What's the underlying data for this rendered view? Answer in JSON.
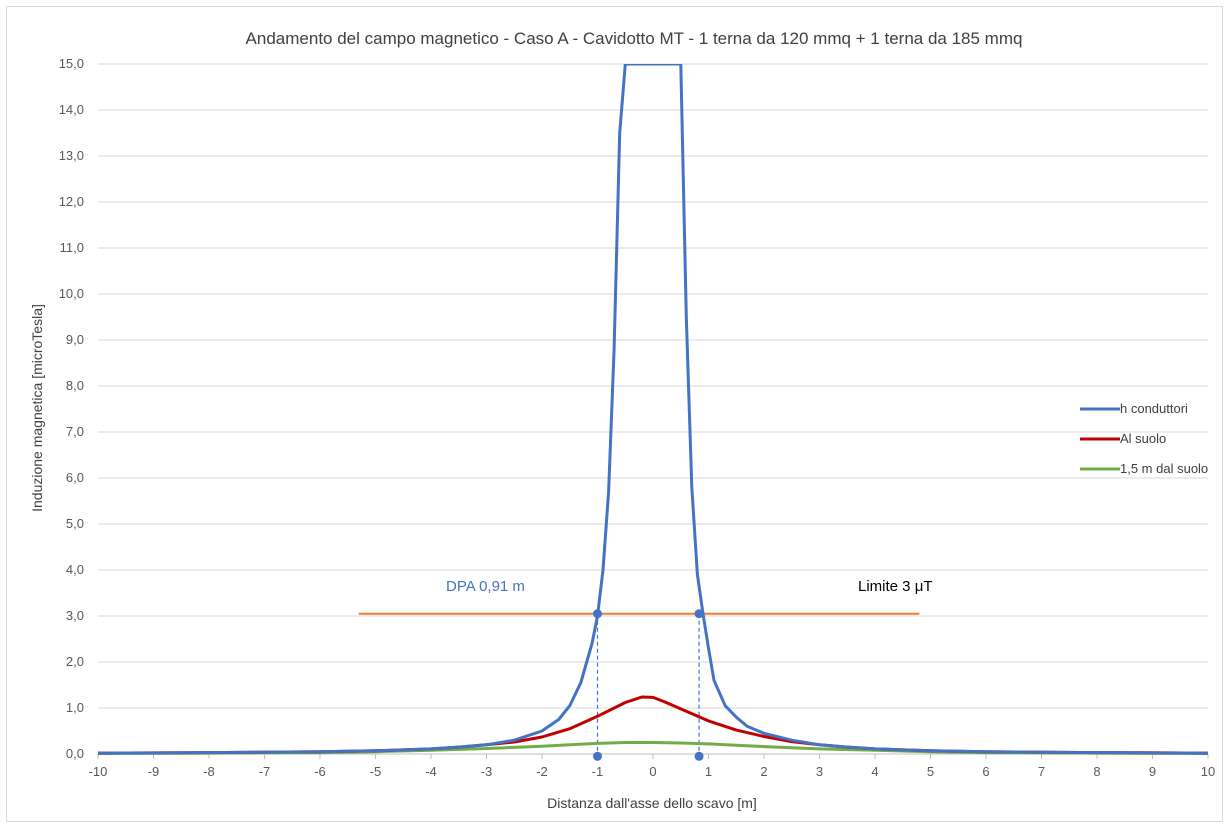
{
  "chart_data": {
    "type": "line",
    "title": "Andamento del  campo magnetico - Caso A - Cavidotto MT - 1 terna da 120 mmq + 1 terna da 185 mmq",
    "xlabel": "Distanza dall'asse dello scavo [m]",
    "ylabel": "Induzione magnetica [microTesla]",
    "xlim": [
      -10,
      10
    ],
    "ylim": [
      0,
      15
    ],
    "x_ticks": [
      "-10",
      "-9",
      "-8",
      "-7",
      "-6",
      "-5",
      "-4",
      "-3",
      "-2",
      "-1",
      "0",
      "1",
      "2",
      "3",
      "4",
      "5",
      "6",
      "7",
      "8",
      "9",
      "10"
    ],
    "y_ticks": [
      "0,0",
      "1,0",
      "2,0",
      "3,0",
      "4,0",
      "5,0",
      "6,0",
      "7,0",
      "8,0",
      "9,0",
      "10,0",
      "11,0",
      "12,0",
      "13,0",
      "14,0",
      "15,0"
    ],
    "grid": "horizontal",
    "legend_position": "right",
    "series": [
      {
        "name": "h conduttori",
        "color": "#4472c4",
        "x": [
          -10,
          -8,
          -6,
          -5,
          -4,
          -3.5,
          -3,
          -2.5,
          -2,
          -1.7,
          -1.5,
          -1.3,
          -1.1,
          -1.0,
          -0.9,
          -0.8,
          -0.7,
          -0.6,
          -0.5,
          0.5,
          0.6,
          0.7,
          0.8,
          0.9,
          1.0,
          1.1,
          1.3,
          1.5,
          1.7,
          2,
          2.5,
          3,
          3.5,
          4,
          5,
          6,
          8,
          10
        ],
        "y": [
          0.02,
          0.03,
          0.05,
          0.07,
          0.11,
          0.15,
          0.2,
          0.3,
          0.5,
          0.75,
          1.05,
          1.55,
          2.4,
          3.0,
          4.0,
          5.7,
          8.8,
          13.5,
          15,
          15,
          9.5,
          5.8,
          3.9,
          3.05,
          2.3,
          1.6,
          1.05,
          0.8,
          0.6,
          0.45,
          0.3,
          0.2,
          0.15,
          0.11,
          0.07,
          0.05,
          0.03,
          0.02
        ]
      },
      {
        "name": "Al suolo",
        "color": "#c00000",
        "x": [
          -10,
          -8,
          -6,
          -5,
          -4,
          -3.5,
          -3,
          -2.5,
          -2,
          -1.5,
          -1,
          -0.5,
          -0.2,
          0,
          0.2,
          0.5,
          1,
          1.5,
          2,
          2.5,
          3,
          3.5,
          4,
          5,
          6,
          8,
          10
        ],
        "y": [
          0.02,
          0.03,
          0.05,
          0.07,
          0.11,
          0.15,
          0.2,
          0.26,
          0.37,
          0.55,
          0.82,
          1.12,
          1.24,
          1.23,
          1.14,
          0.98,
          0.72,
          0.52,
          0.38,
          0.27,
          0.2,
          0.15,
          0.11,
          0.07,
          0.05,
          0.03,
          0.02
        ]
      },
      {
        "name": "1,5 m dal suolo",
        "color": "#70ad47",
        "x": [
          -10,
          -8,
          -6,
          -5,
          -4,
          -3,
          -2,
          -1.5,
          -1,
          -0.5,
          0,
          0.5,
          1,
          1.5,
          2,
          3,
          4,
          5,
          6,
          8,
          10
        ],
        "y": [
          0.01,
          0.02,
          0.03,
          0.05,
          0.08,
          0.12,
          0.17,
          0.2,
          0.23,
          0.25,
          0.25,
          0.24,
          0.22,
          0.19,
          0.16,
          0.11,
          0.08,
          0.05,
          0.03,
          0.02,
          0.01
        ]
      }
    ],
    "limit_line": {
      "label": "Limite 3 μT",
      "value": 3.05,
      "x_start": -5.3,
      "x_end": 4.8,
      "color": "#ed7d31"
    },
    "dpa": {
      "label": "DPA 0,91 m",
      "x_left": -1.0,
      "x_right": 0.83,
      "color": "#4472c4"
    }
  }
}
